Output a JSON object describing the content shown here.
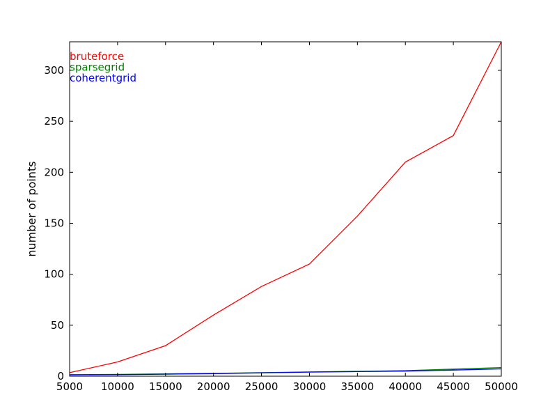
{
  "chart_data": {
    "type": "line",
    "title": "",
    "xlabel": "",
    "ylabel": "number of points",
    "xlim": [
      5000,
      50000
    ],
    "ylim": [
      0,
      328
    ],
    "grid": false,
    "legend": "top-left",
    "x": [
      5000,
      10000,
      15000,
      20000,
      25000,
      30000,
      35000,
      40000,
      45000,
      50000
    ],
    "x_ticks": [
      5000,
      10000,
      15000,
      20000,
      25000,
      30000,
      35000,
      40000,
      45000,
      50000
    ],
    "y_ticks": [
      0,
      50,
      100,
      150,
      200,
      250,
      300
    ],
    "series": [
      {
        "name": "bruteforce",
        "color": "#ff0000",
        "values": [
          3.5,
          14,
          30,
          60,
          88,
          110,
          157,
          210,
          236,
          328
        ]
      },
      {
        "name": "sparsegrid",
        "color": "#008000",
        "values": [
          1.5,
          1.8,
          2.3,
          2.8,
          3.5,
          4.2,
          4.8,
          5.5,
          7.0,
          8.5
        ]
      },
      {
        "name": "coherentgrid",
        "color": "#0000ff",
        "values": [
          1.2,
          1.5,
          2.0,
          2.5,
          3.3,
          4.0,
          4.5,
          5.0,
          6.0,
          7.2
        ]
      }
    ]
  }
}
